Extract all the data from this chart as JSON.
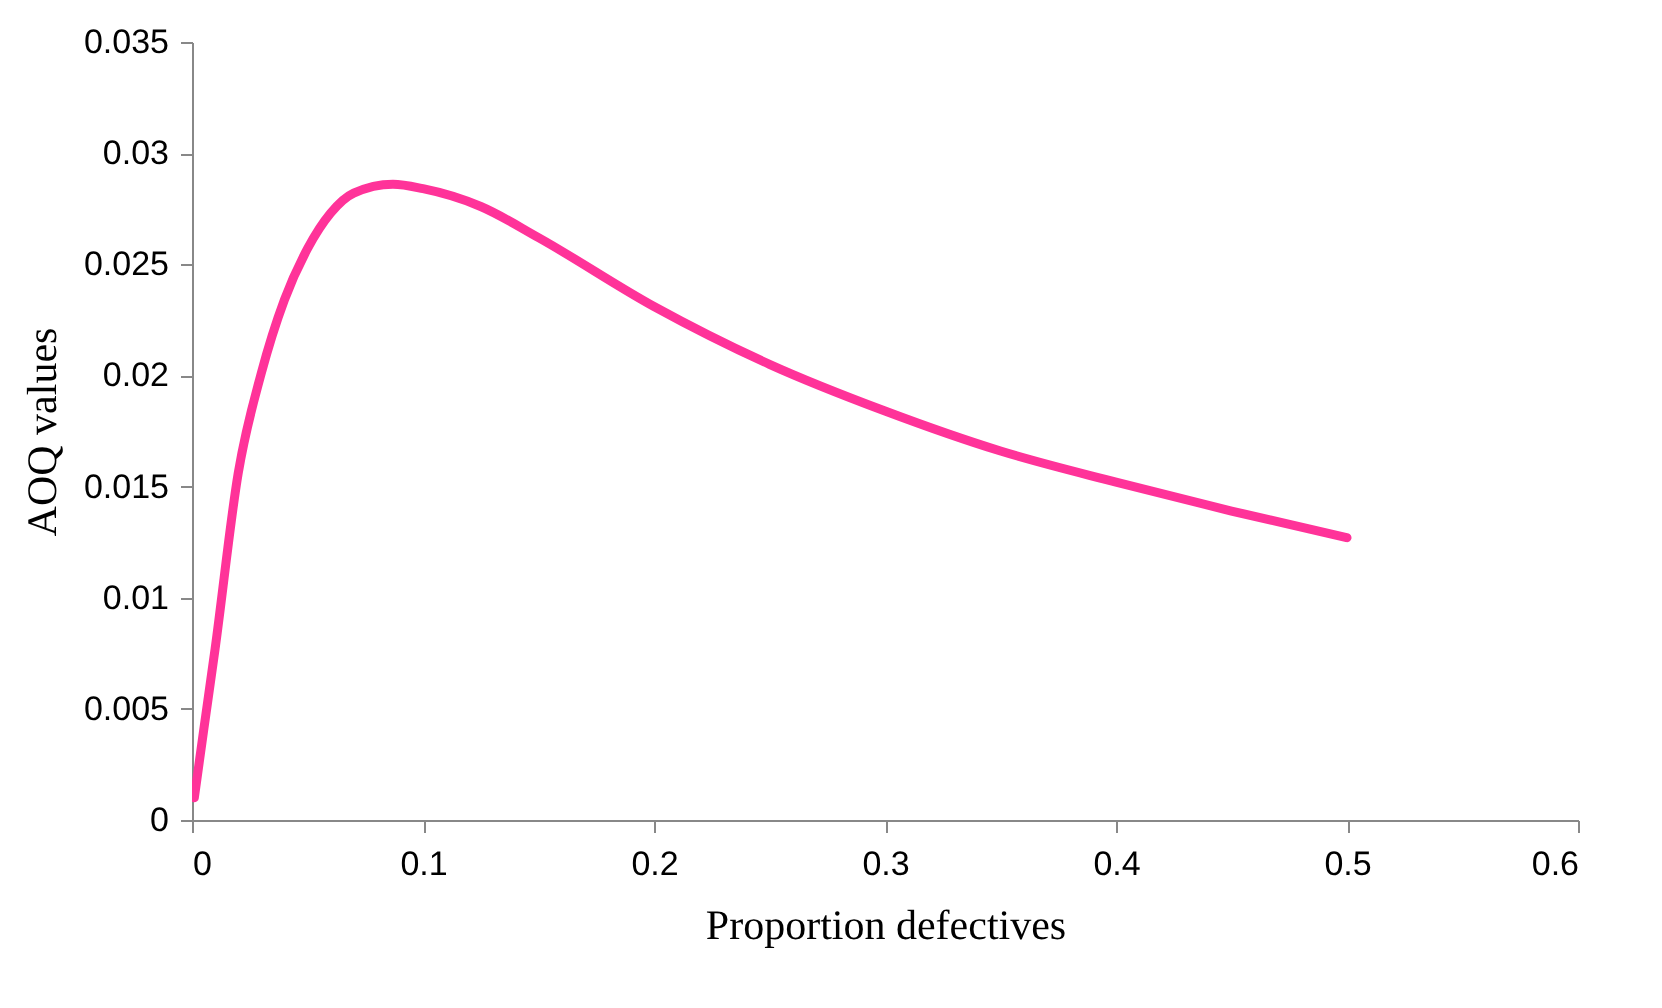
{
  "chart_data": {
    "type": "line",
    "xlabel": "Proportion defectives",
    "ylabel": "AOQ values",
    "x": [
      0.001,
      0.005,
      0.01,
      0.02,
      0.03,
      0.04,
      0.05,
      0.06,
      0.07,
      0.087,
      0.1,
      0.125,
      0.15,
      0.2,
      0.25,
      0.3,
      0.35,
      0.4,
      0.45,
      0.5
    ],
    "series": [
      {
        "color": "#ff3399",
        "values": [
          0.001,
          0.004,
          0.0077,
          0.0156,
          0.0201,
          0.0234,
          0.0257,
          0.0273,
          0.0282,
          0.0286,
          0.0284,
          0.0276,
          0.0262,
          0.0231,
          0.0205,
          0.0184,
          0.0166,
          0.0152,
          0.0139,
          0.0127
        ]
      }
    ],
    "xlim": [
      0,
      0.6
    ],
    "xticks": [
      0,
      0.1,
      0.2,
      0.3,
      0.4,
      0.5,
      0.6
    ],
    "ylim": [
      0,
      0.035
    ],
    "yticks": [
      0,
      0.005,
      0.01,
      0.015,
      0.02,
      0.025,
      0.03,
      0.035
    ],
    "grid": false,
    "legend": false,
    "marker": "none",
    "line_style": "solid"
  }
}
